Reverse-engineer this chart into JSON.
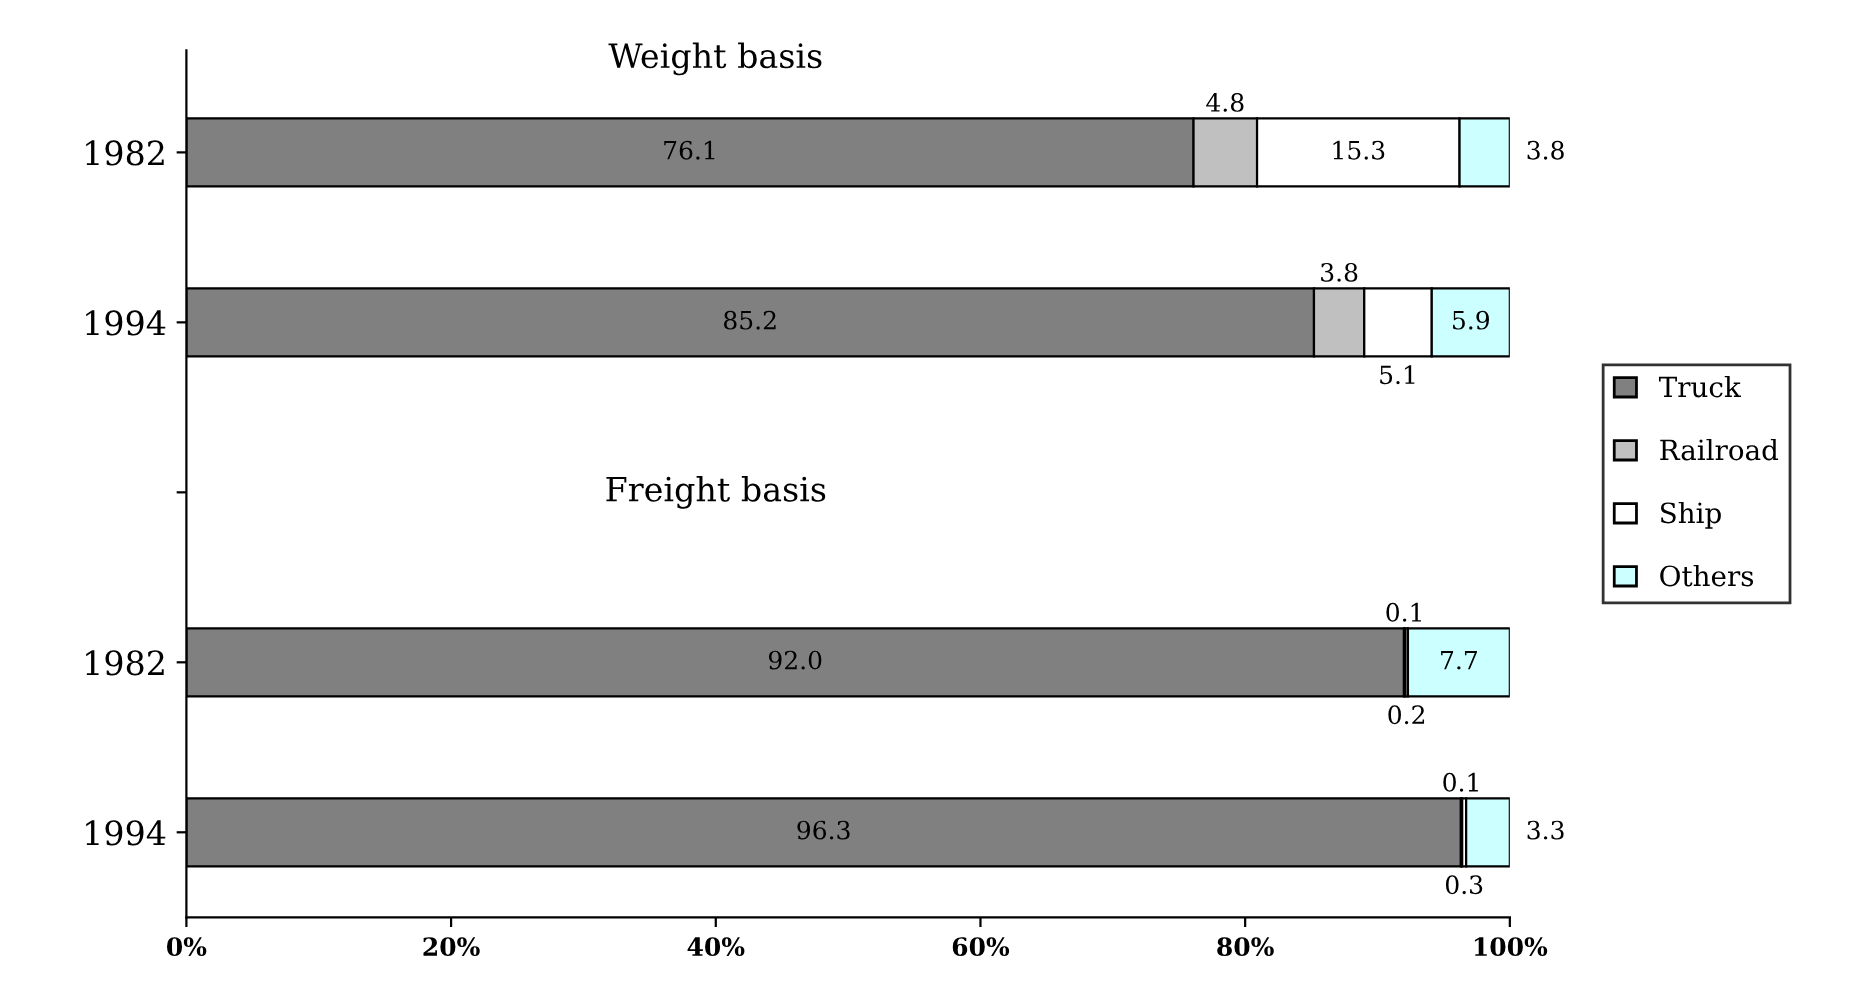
{
  "chart_data": {
    "type": "bar",
    "orientation": "horizontal",
    "stacked": true,
    "categories": [
      "1982",
      "1994",
      null,
      "1982",
      "1994"
    ],
    "series": [
      {
        "name": "Truck",
        "color": "#808080",
        "values": [
          76.1,
          85.2,
          null,
          92.0,
          96.3
        ],
        "value_labels": [
          "76.1",
          "85.2",
          null,
          "92.0",
          "96.3"
        ]
      },
      {
        "name": "Railroad",
        "color": "#c0c0c0",
        "values": [
          4.8,
          3.8,
          null,
          0.1,
          0.1
        ],
        "value_labels": [
          "4.8",
          "3.8",
          null,
          "0.1",
          "0.1"
        ]
      },
      {
        "name": "Ship",
        "color": "#ffffff",
        "values": [
          15.3,
          5.1,
          null,
          0.2,
          0.3
        ],
        "value_labels": [
          "15.3",
          "5.1",
          null,
          "0.2",
          "0.3"
        ]
      },
      {
        "name": "Others",
        "color": "#ccffff",
        "values": [
          3.8,
          5.9,
          null,
          7.7,
          3.3
        ],
        "value_labels": [
          "3.8",
          "5.9",
          null,
          "7.7",
          "3.3"
        ]
      }
    ],
    "xlim": [
      0,
      100
    ],
    "xticks": [
      {
        "value": 0,
        "label": "0%"
      },
      {
        "value": 20,
        "label": "20%"
      },
      {
        "value": 40,
        "label": "40%"
      },
      {
        "value": 60,
        "label": "60%"
      },
      {
        "value": 80,
        "label": "80%"
      },
      {
        "value": 100,
        "label": "100%"
      }
    ],
    "annotations": [
      "Weight basis",
      "Freight basis"
    ],
    "legend": "right",
    "grid": false
  }
}
